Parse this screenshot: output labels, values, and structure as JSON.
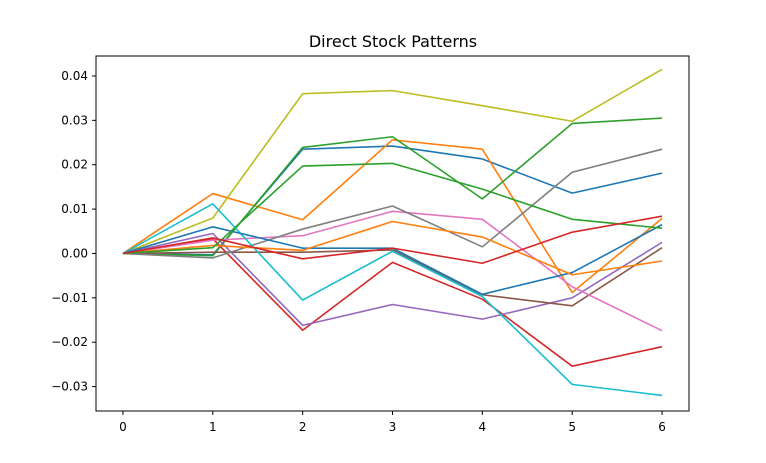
{
  "chart_data": {
    "type": "line",
    "title": "Direct Stock Patterns",
    "xlabel": "",
    "ylabel": "",
    "x": [
      0,
      1,
      2,
      3,
      4,
      5,
      6
    ],
    "xlim": [
      -0.3,
      6.3
    ],
    "ylim": [
      -0.0355,
      0.0445
    ],
    "xticks": [
      0,
      1,
      2,
      3,
      4,
      5,
      6
    ],
    "yticks": [
      -0.03,
      -0.02,
      -0.01,
      0.0,
      0.01,
      0.02,
      0.03,
      0.04
    ],
    "ytick_labels": [
      "−0.03",
      "−0.02",
      "−0.01",
      "0.00",
      "0.01",
      "0.02",
      "0.03",
      "0.04"
    ],
    "grid": false,
    "legend": "none",
    "series": [
      {
        "color": "#1f77b4",
        "values": [
          0,
          -0.0003,
          0.0235,
          0.0242,
          0.0213,
          0.0136,
          0.0181
        ]
      },
      {
        "color": "#ff7f0e",
        "values": [
          0,
          0.0135,
          0.0076,
          0.0256,
          0.0235,
          -0.0088,
          0.0079
        ]
      },
      {
        "color": "#2ca02c",
        "values": [
          0,
          -0.0005,
          0.0239,
          0.0263,
          0.0123,
          0.0293,
          0.0305
        ]
      },
      {
        "color": "#d62728",
        "values": [
          0,
          0.0033,
          -0.0173,
          -0.002,
          -0.0103,
          -0.0254,
          -0.021
        ]
      },
      {
        "color": "#9467bd",
        "values": [
          0,
          0.0045,
          -0.0162,
          -0.0115,
          -0.0148,
          -0.01,
          0.0025
        ]
      },
      {
        "color": "#8c564b",
        "values": [
          0,
          0.0003,
          0.0003,
          0.0008,
          -0.0093,
          -0.0118,
          0.0013
        ]
      },
      {
        "color": "#e377c2",
        "values": [
          0,
          0.003,
          0.004,
          0.0095,
          0.0077,
          -0.0075,
          -0.0174
        ]
      },
      {
        "color": "#7f7f7f",
        "values": [
          0,
          -0.001,
          0.0055,
          0.0107,
          0.0015,
          0.0183,
          0.0235
        ]
      },
      {
        "color": "#bcbd22",
        "values": [
          0,
          0.008,
          0.036,
          0.0367,
          0.0333,
          0.0298,
          0.0415
        ]
      },
      {
        "color": "#17becf",
        "values": [
          0,
          0.0112,
          -0.0105,
          0.0005,
          -0.0097,
          -0.0295,
          -0.032
        ]
      },
      {
        "color": "#1f77b4",
        "values": [
          0,
          0.006,
          0.0012,
          0.0012,
          -0.0092,
          -0.0043,
          0.0065
        ]
      },
      {
        "color": "#ff7f0e",
        "values": [
          0,
          0.0018,
          0.0007,
          0.0072,
          0.0037,
          -0.0048,
          -0.0017
        ]
      },
      {
        "color": "#2ca02c",
        "values": [
          0,
          0.0013,
          0.0197,
          0.0203,
          0.0145,
          0.0077,
          0.0057
        ]
      },
      {
        "color": "#d62728",
        "values": [
          0,
          0.0035,
          -0.0012,
          0.0012,
          -0.0022,
          0.0048,
          0.0084
        ]
      }
    ]
  }
}
